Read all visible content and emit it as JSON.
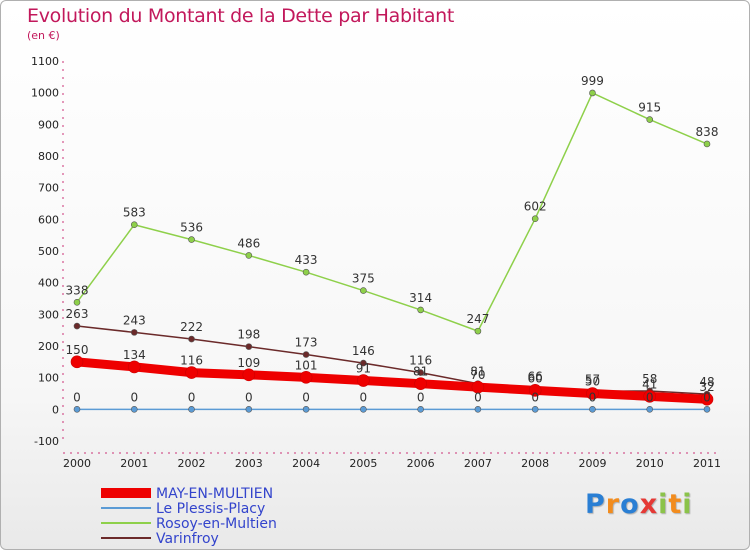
{
  "chart_data": {
    "type": "line",
    "title": "Evolution du Montant de la Dette par Habitant",
    "subtitle": "(en €)",
    "x": [
      "2000",
      "2001",
      "2002",
      "2003",
      "2004",
      "2005",
      "2006",
      "2007",
      "2008",
      "2009",
      "2010",
      "2011"
    ],
    "ylim": [
      -100,
      1100
    ],
    "yticks": [
      "-100",
      "0",
      "100",
      "200",
      "300",
      "400",
      "500",
      "600",
      "700",
      "800",
      "900",
      "1000",
      "1100"
    ],
    "grid": false,
    "legend_position": "bottom-left",
    "series": [
      {
        "name": "MAY-EN-MULTIEN",
        "color": "#ee0000",
        "values": [
          150,
          134,
          116,
          109,
          101,
          91,
          81,
          70,
          60,
          50,
          41,
          32
        ],
        "labels": [
          "150",
          "134",
          "116",
          "109",
          "101",
          "91",
          "81",
          "70",
          "60",
          "50",
          "41",
          "32"
        ]
      },
      {
        "name": "Le Plessis-Placy",
        "color": "#5b9bd5",
        "values": [
          0,
          0,
          0,
          0,
          0,
          0,
          0,
          0,
          0,
          0,
          0,
          0
        ],
        "labels": [
          "0",
          "0",
          "0",
          "0",
          "0",
          "0",
          "0",
          "0",
          "0",
          "0",
          "0",
          "0"
        ]
      },
      {
        "name": "Rosoy-en-Multien",
        "color": "#8ed04a",
        "values": [
          338,
          583,
          536,
          486,
          433,
          375,
          314,
          247,
          602,
          999,
          915,
          838
        ],
        "labels": [
          "338",
          "583",
          "536",
          "486",
          "433",
          "375",
          "314",
          "247",
          "602",
          "999",
          "915",
          "838"
        ]
      },
      {
        "name": "Varinfroy",
        "color": "#6b2a2a",
        "values": [
          263,
          243,
          222,
          198,
          173,
          146,
          116,
          81,
          66,
          57,
          58,
          48
        ],
        "labels": [
          "263",
          "243",
          "222",
          "198",
          "173",
          "146",
          "116",
          "81",
          "66",
          "57",
          "58",
          "48"
        ]
      }
    ]
  },
  "logo": {
    "letters": [
      "P",
      "r",
      "o",
      "x",
      "i",
      "t",
      "i"
    ],
    "colors": [
      "#2a7fd4",
      "#f28c1e",
      "#2a7fd4",
      "#e53935",
      "#8bc34a",
      "#f28c1e",
      "#8bc34a"
    ]
  }
}
